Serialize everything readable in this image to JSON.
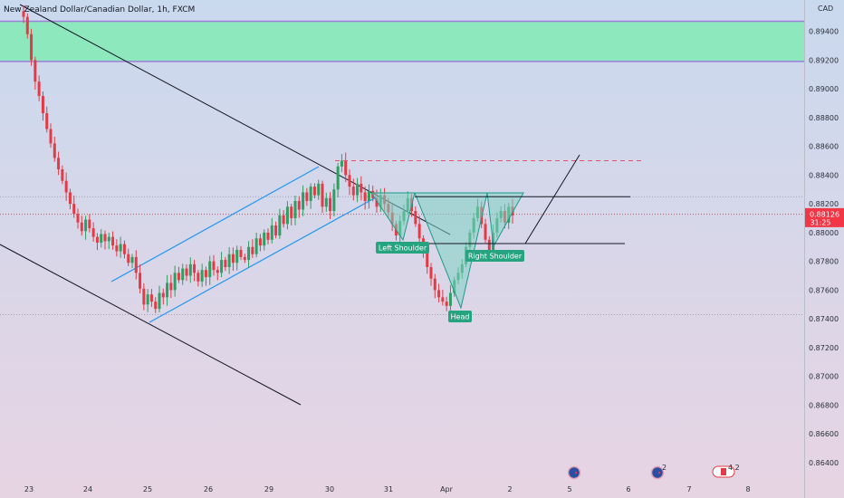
{
  "header": {
    "title": "New Zealand Dollar/Canadian Dollar, 1h, FXCM"
  },
  "price_scale": {
    "currency": "CAD",
    "current_price": "0.88126",
    "countdown": "31:25",
    "current_price_value": 0.88126
  },
  "colors": {
    "bg_top": "#c9d9ee",
    "bg_bottom": "#e7d4e3",
    "candle_up": "#2e9e62",
    "candle_down": "#e23b45",
    "channel": "#2196f3",
    "trendline": "#131722",
    "supply_zone": "#8de8bd",
    "supply_border": "#9c7fd8",
    "pattern_fill": "#7fd2c2",
    "label_bg": "#26a37f",
    "target_dash": "#e84e6a",
    "price_tag": "#f23645"
  },
  "annotations": {
    "left_shoulder": "Left Shoulder",
    "head": "Head",
    "right_shoulder": "Right Shoulder"
  },
  "event_markers": [
    {
      "icon": "nz-flag-icon",
      "badge": ""
    },
    {
      "icon": "nz-flag-icon",
      "badge": "2"
    },
    {
      "icon": "ca-flag-icon",
      "badge": "4 2"
    }
  ],
  "chart_data": {
    "type": "candlestick",
    "title": "New Zealand Dollar/Canadian Dollar, 1h, FXCM",
    "x_tick_labels": [
      "23",
      "24",
      "25",
      "26",
      "29",
      "30",
      "31",
      "Apr",
      "2",
      "5",
      "6",
      "7",
      "8"
    ],
    "y_tick_labels": [
      "0.89400",
      "0.89200",
      "0.89000",
      "0.88800",
      "0.88600",
      "0.88400",
      "0.88200",
      "0.88000",
      "0.87800",
      "0.87600",
      "0.87400",
      "0.87200",
      "0.87000",
      "0.86800",
      "0.86600",
      "0.86400"
    ],
    "ylim": [
      0.8628,
      0.8958
    ],
    "supply_zone": [
      0.8919,
      0.8947
    ],
    "target_level": 0.885,
    "neckline": 0.8825,
    "breakout_level": 0.879,
    "close_series": [
      0.895,
      0.8938,
      0.892,
      0.8905,
      0.8895,
      0.8883,
      0.8872,
      0.8862,
      0.8852,
      0.8844,
      0.8836,
      0.8828,
      0.882,
      0.8813,
      0.8807,
      0.8801,
      0.8809,
      0.8803,
      0.8797,
      0.8793,
      0.8799,
      0.8794,
      0.8797,
      0.8791,
      0.8787,
      0.8792,
      0.8785,
      0.8779,
      0.8783,
      0.8772,
      0.8761,
      0.875,
      0.8757,
      0.8752,
      0.8747,
      0.8758,
      0.8755,
      0.8765,
      0.876,
      0.8772,
      0.8767,
      0.8775,
      0.877,
      0.8778,
      0.8772,
      0.8766,
      0.8774,
      0.8769,
      0.878,
      0.8774,
      0.8772,
      0.8781,
      0.8776,
      0.8785,
      0.8779,
      0.8788,
      0.8783,
      0.8781,
      0.879,
      0.8785,
      0.8796,
      0.8791,
      0.88,
      0.8795,
      0.8805,
      0.8798,
      0.8812,
      0.8806,
      0.8818,
      0.881,
      0.8822,
      0.8816,
      0.8828,
      0.8822,
      0.8832,
      0.8826,
      0.8834,
      0.8818,
      0.8824,
      0.8815,
      0.883,
      0.8846,
      0.885,
      0.884,
      0.8832,
      0.8826,
      0.8834,
      0.8828,
      0.8822,
      0.8829,
      0.8824,
      0.8818,
      0.8826,
      0.882,
      0.8814,
      0.8806,
      0.8798,
      0.8808,
      0.8815,
      0.8824,
      0.8815,
      0.8806,
      0.8796,
      0.8786,
      0.8776,
      0.8768,
      0.876,
      0.8755,
      0.8752,
      0.8749,
      0.8758,
      0.8767,
      0.8772,
      0.8778,
      0.879,
      0.88,
      0.881,
      0.8818,
      0.8806,
      0.8795,
      0.8788,
      0.88,
      0.881,
      0.8815,
      0.8807,
      0.8818,
      0.8812
    ]
  }
}
